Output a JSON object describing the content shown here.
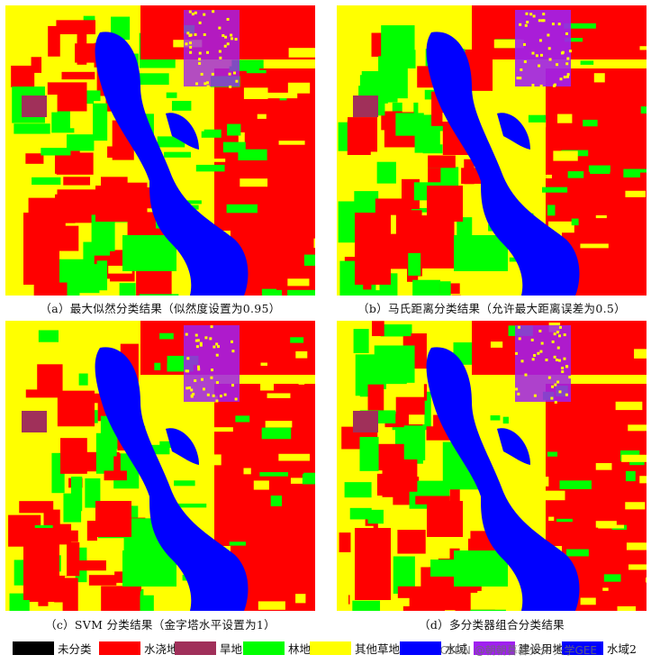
{
  "captions": {
    "a": "（a）最大似然分类结果（似然度设置为0.95）",
    "b": "（b）马氏距离分类结果（允许最大距离误差为0.5）",
    "c": "（c）SVM 分类结果（金字塔水平设置为1）",
    "d": "（d）多分类器组合分类结果"
  },
  "legend": [
    {
      "label": "未分类",
      "color": "#000000"
    },
    {
      "label": "水浇地",
      "color": "#ff0000"
    },
    {
      "label": "旱地",
      "color": "#a0305a"
    },
    {
      "label": "林地",
      "color": "#00ff00"
    },
    {
      "label": "其他草地",
      "color": "#ffff00"
    },
    {
      "label": "水域",
      "color": "#0000ff"
    },
    {
      "label": "建设用地",
      "color": "#a020f0"
    },
    {
      "label": "水域2",
      "color": "#0000ff"
    }
  ],
  "watermark": "CSDN @朝朝暮暮夕夕 天学GEE"
}
